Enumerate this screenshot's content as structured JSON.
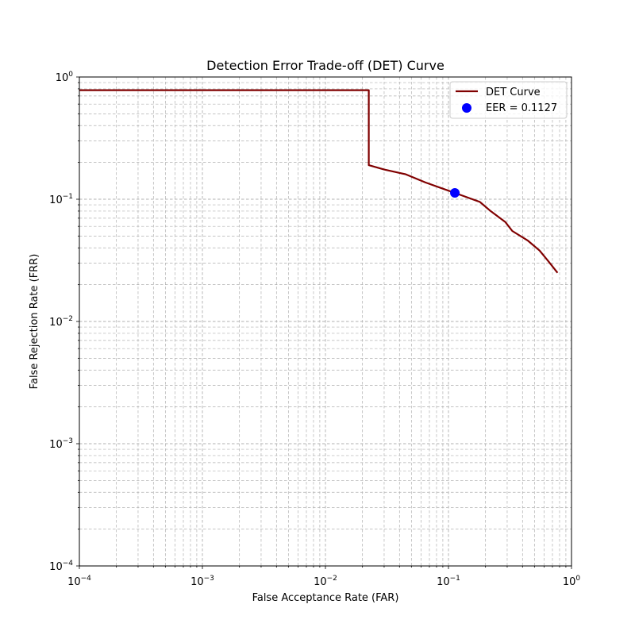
{
  "chart_data": {
    "type": "line",
    "title": "Detection Error Trade-off (DET) Curve",
    "xlabel": "False Acceptance Rate (FAR)",
    "ylabel": "False Rejection Rate (FRR)",
    "xscale": "log",
    "yscale": "log",
    "xlim": [
      0.0001,
      1
    ],
    "ylim": [
      0.0001,
      1
    ],
    "grid": "both major and minor, dashed",
    "x_tick_labels": [
      {
        "base": "10",
        "exp": "−4",
        "value": 0.0001
      },
      {
        "base": "10",
        "exp": "−3",
        "value": 0.001
      },
      {
        "base": "10",
        "exp": "−2",
        "value": 0.01
      },
      {
        "base": "10",
        "exp": "−1",
        "value": 0.1
      },
      {
        "base": "10",
        "exp": "0",
        "value": 1
      }
    ],
    "y_tick_labels": [
      {
        "base": "10",
        "exp": "−4",
        "value": 0.0001
      },
      {
        "base": "10",
        "exp": "−3",
        "value": 0.001
      },
      {
        "base": "10",
        "exp": "−2",
        "value": 0.01
      },
      {
        "base": "10",
        "exp": "−1",
        "value": 0.1
      },
      {
        "base": "10",
        "exp": "0",
        "value": 1
      }
    ],
    "series": [
      {
        "name": "DET Curve",
        "color": "#800000",
        "points": [
          [
            0.0001,
            0.78
          ],
          [
            0.0225,
            0.78
          ],
          [
            0.0225,
            0.19
          ],
          [
            0.03,
            0.175
          ],
          [
            0.045,
            0.16
          ],
          [
            0.065,
            0.137
          ],
          [
            0.09,
            0.122
          ],
          [
            0.1127,
            0.1127
          ],
          [
            0.13,
            0.107
          ],
          [
            0.18,
            0.095
          ],
          [
            0.22,
            0.08
          ],
          [
            0.29,
            0.065
          ],
          [
            0.33,
            0.055
          ],
          [
            0.44,
            0.046
          ],
          [
            0.55,
            0.038
          ],
          [
            0.65,
            0.031
          ],
          [
            0.77,
            0.025
          ]
        ]
      },
      {
        "name": "EER = 0.1127",
        "color": "#0000ff",
        "marker": "circle",
        "points": [
          [
            0.1127,
            0.1127
          ]
        ]
      }
    ],
    "legend": {
      "placement": "upper right"
    }
  }
}
